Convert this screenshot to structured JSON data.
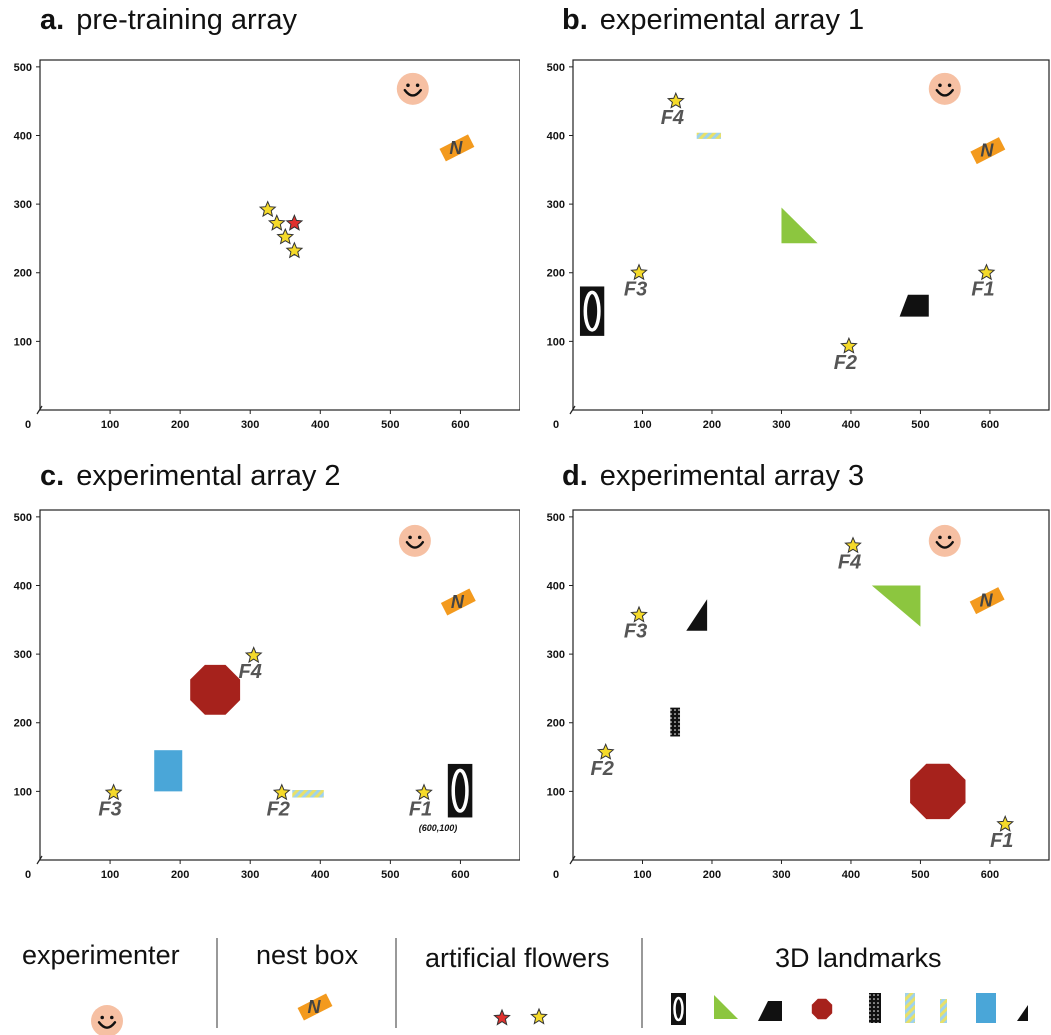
{
  "panels": [
    {
      "letter": "a.",
      "title": "pre-training array",
      "items": [
        {
          "type": "face",
          "x": 532,
          "y": 468
        },
        {
          "type": "nest",
          "x": 595,
          "y": 382
        },
        {
          "type": "star",
          "color": "#F5DA2A",
          "x": 325,
          "y": 292
        },
        {
          "type": "star",
          "color": "#F5DA2A",
          "x": 338,
          "y": 272
        },
        {
          "type": "star",
          "color": "#E0312E",
          "x": 363,
          "y": 272
        },
        {
          "type": "star",
          "color": "#F5DA2A",
          "x": 350,
          "y": 252
        },
        {
          "type": "star",
          "color": "#F5DA2A",
          "x": 363,
          "y": 232
        }
      ]
    },
    {
      "letter": "b.",
      "title": "experimental array 1",
      "items": [
        {
          "type": "face",
          "x": 535,
          "y": 468
        },
        {
          "type": "nest",
          "x": 597,
          "y": 378
        },
        {
          "type": "star",
          "color": "#F5DA2A",
          "x": 148,
          "y": 450,
          "label": "F4",
          "lx": 143,
          "ly": 417
        },
        {
          "type": "stripe",
          "x": 178,
          "y": 404,
          "w": 35,
          "h": 9
        },
        {
          "type": "tri",
          "x": 300,
          "y": 295,
          "w": 52,
          "h": 52
        },
        {
          "type": "oval",
          "x": 10,
          "y": 180,
          "w": 35,
          "h": 72
        },
        {
          "type": "star",
          "color": "#F5DA2A",
          "x": 95,
          "y": 200,
          "label": "F3",
          "lx": 90,
          "ly": 167
        },
        {
          "type": "trap",
          "x": 470,
          "y": 168,
          "w": 42,
          "h": 32
        },
        {
          "type": "star",
          "color": "#F5DA2A",
          "x": 595,
          "y": 200,
          "label": "F1",
          "lx": 590,
          "ly": 167
        },
        {
          "type": "star",
          "color": "#F5DA2A",
          "x": 397,
          "y": 93,
          "label": "F2",
          "lx": 392,
          "ly": 60
        }
      ]
    },
    {
      "letter": "c.",
      "title": "experimental array 2",
      "items": [
        {
          "type": "face",
          "x": 535,
          "y": 465
        },
        {
          "type": "nest",
          "x": 597,
          "y": 376
        },
        {
          "type": "oct",
          "x": 250,
          "y": 248,
          "r": 27
        },
        {
          "type": "star",
          "color": "#F5DA2A",
          "x": 305,
          "y": 298,
          "label": "F4",
          "lx": 300,
          "ly": 265
        },
        {
          "type": "rect",
          "x": 163,
          "y": 160,
          "w": 40,
          "h": 60,
          "color": "#4AA6D8"
        },
        {
          "type": "star",
          "color": "#F5DA2A",
          "x": 105,
          "y": 98,
          "label": "F3",
          "lx": 100,
          "ly": 65
        },
        {
          "type": "star",
          "color": "#F5DA2A",
          "x": 345,
          "y": 98,
          "label": "F2",
          "lx": 340,
          "ly": 65
        },
        {
          "type": "stripe",
          "x": 360,
          "y": 102,
          "w": 45,
          "h": 11
        },
        {
          "type": "star",
          "color": "#F5DA2A",
          "x": 548,
          "y": 98,
          "label": "F1",
          "lx": 543,
          "ly": 65
        },
        {
          "type": "oval",
          "x": 582,
          "y": 140,
          "w": 35,
          "h": 78
        },
        {
          "type": "note",
          "x": 568,
          "y": 42,
          "text": "(600,100)"
        }
      ]
    },
    {
      "letter": "d.",
      "title": "experimental array 3",
      "items": [
        {
          "type": "face",
          "x": 535,
          "y": 465
        },
        {
          "type": "nest",
          "x": 596,
          "y": 378
        },
        {
          "type": "star",
          "color": "#F5DA2A",
          "x": 403,
          "y": 458,
          "label": "F4",
          "lx": 398,
          "ly": 425
        },
        {
          "type": "tri2",
          "x": 430,
          "y": 400,
          "w": 70,
          "h": 60
        },
        {
          "type": "star",
          "color": "#F5DA2A",
          "x": 95,
          "y": 357,
          "label": "F3",
          "lx": 90,
          "ly": 324
        },
        {
          "type": "tri3",
          "x": 163,
          "y": 380,
          "w": 30,
          "h": 46
        },
        {
          "type": "dots",
          "x": 140,
          "y": 222,
          "w": 14,
          "h": 42
        },
        {
          "type": "star",
          "color": "#F5DA2A",
          "x": 47,
          "y": 157,
          "label": "F2",
          "lx": 42,
          "ly": 124
        },
        {
          "type": "oct",
          "x": 525,
          "y": 100,
          "r": 30
        },
        {
          "type": "star",
          "color": "#F5DA2A",
          "x": 622,
          "y": 52,
          "label": "F1",
          "lx": 617,
          "ly": 19
        }
      ]
    }
  ],
  "axes": {
    "xticks": [
      100,
      200,
      300,
      400,
      500,
      600
    ],
    "yticks": [
      100,
      200,
      300,
      400,
      500
    ],
    "origin_label": "0"
  },
  "legend": {
    "experimenter": "experimenter",
    "nest_box": "nest box",
    "nest_letter": "N",
    "artificial_flowers": "artificial flowers",
    "landmarks_3d": "3D landmarks"
  },
  "colors": {
    "star_yellow": "#F5DA2A",
    "star_red": "#E0312E",
    "face": "#F6C0A3",
    "nest": "#F39A1E",
    "green": "#8CC63F",
    "octagon": "#A6221C",
    "blue": "#4AA6D8",
    "label_gray": "#555555"
  }
}
